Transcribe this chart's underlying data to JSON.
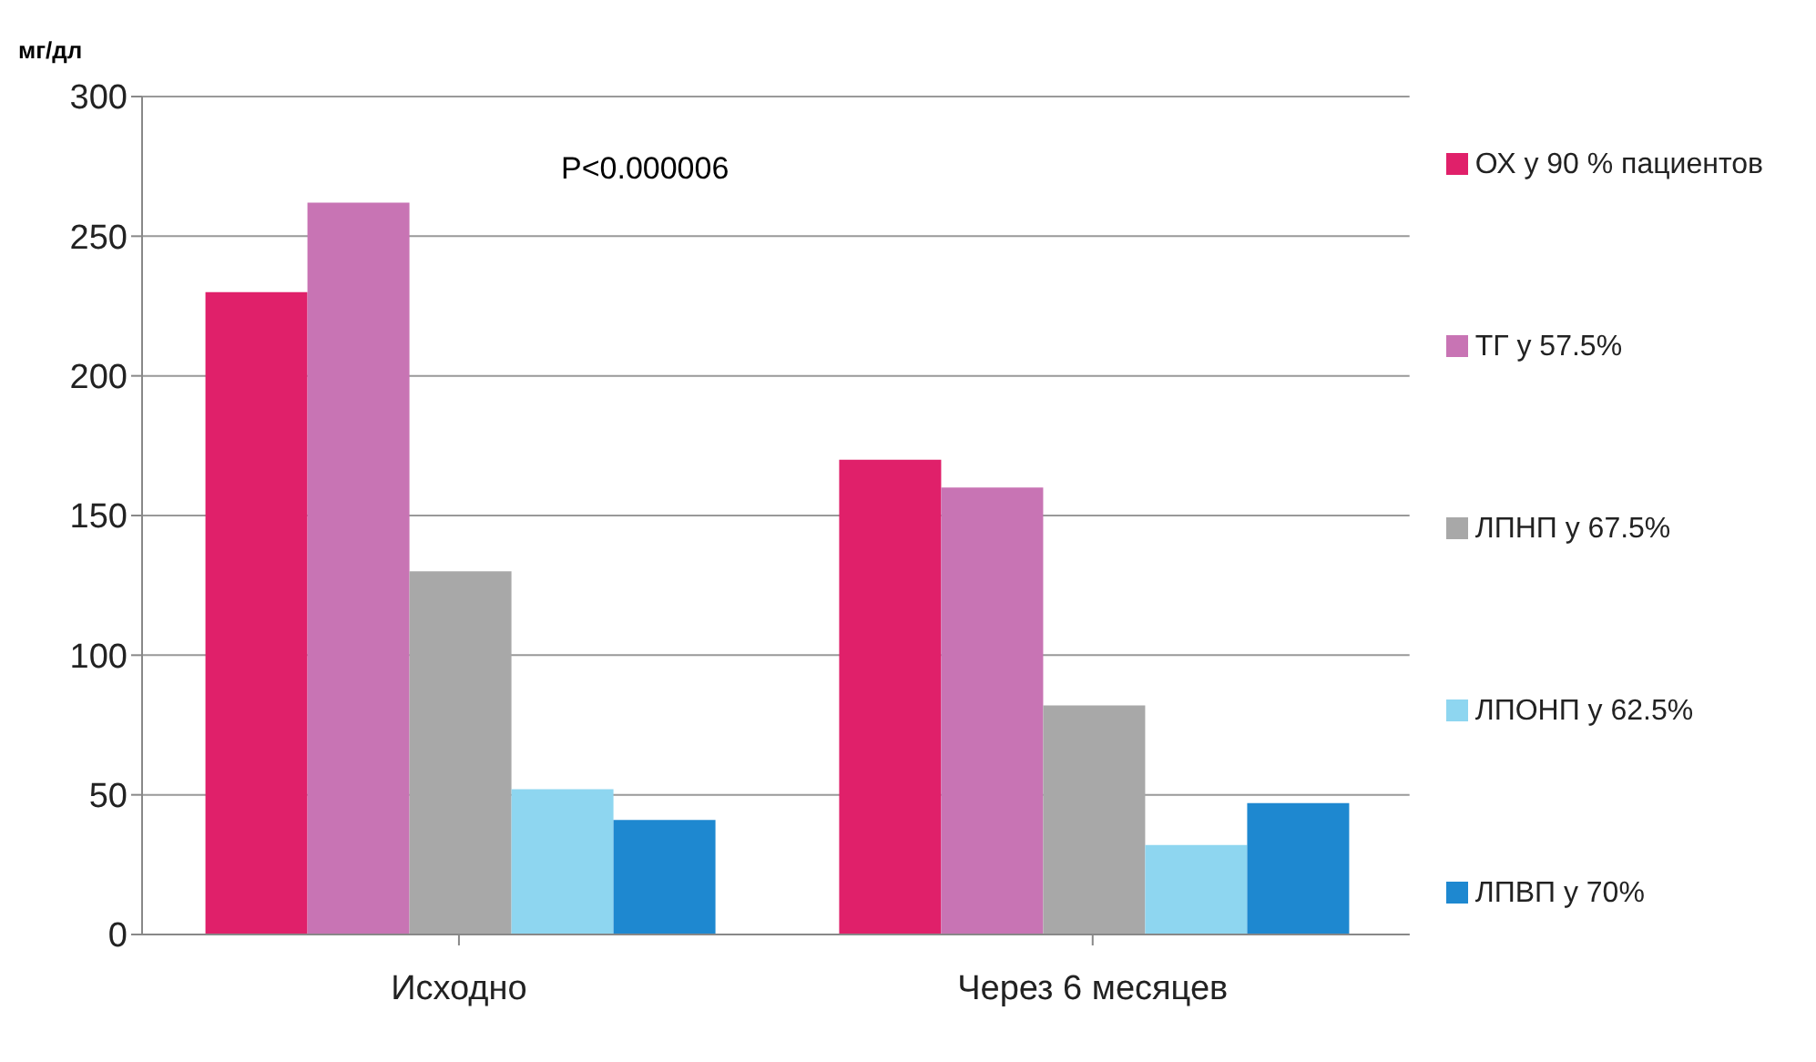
{
  "chart_data": {
    "type": "bar",
    "ylabel": "мг/дл",
    "categories": [
      "Исходно",
      "Через 6 месяцев"
    ],
    "series": [
      {
        "name": "ОХ у 90 % пациентов",
        "color": "#e0206a",
        "values": [
          230,
          170
        ]
      },
      {
        "name": "ТГ у 57.5%",
        "color": "#c874b4",
        "values": [
          262,
          160
        ]
      },
      {
        "name": "ЛПНП у 67.5%",
        "color": "#a8a8a8",
        "values": [
          130,
          82
        ]
      },
      {
        "name": "ЛПОНП у 62.5%",
        "color": "#8ed6f0",
        "values": [
          52,
          32
        ]
      },
      {
        "name": "ЛПВП у 70%",
        "color": "#1e88d0",
        "values": [
          41,
          47
        ]
      }
    ],
    "ylim": [
      0,
      300
    ],
    "yticks": [
      0,
      50,
      100,
      150,
      200,
      250,
      300
    ],
    "grid": "y",
    "legend": "right",
    "annotations": [
      "P<0.000006"
    ]
  }
}
